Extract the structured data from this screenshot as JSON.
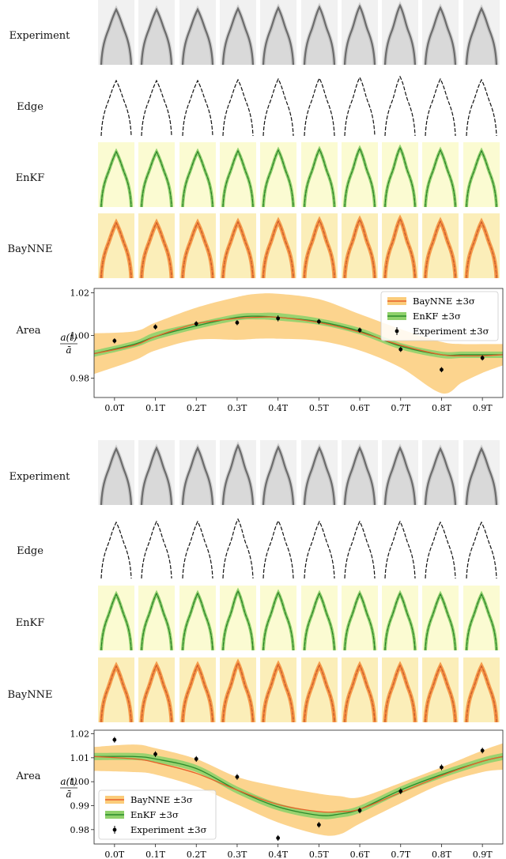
{
  "colors": {
    "experiment_bg": "#f1f1f1",
    "enkf_bg": "#fbfbd2",
    "baynne_bg": "#fbeeb9",
    "enkf_line": "#2a8a2a",
    "enkf_band": "#8fd16b",
    "baynne_line": "#e8602a",
    "baynne_band": "#fbcc7a",
    "edge_line": "#111111"
  },
  "panels": [
    {
      "row_labels": [
        "Experiment",
        "Edge",
        "EnKF",
        "BayNNE"
      ],
      "area_label": "Area",
      "ylabel_num": "a(t)",
      "ylabel_den": "ā",
      "legend": [
        "BayNNE ±3σ",
        "EnKF ±3σ",
        "Experiment ±3σ"
      ],
      "legend_position": "top-right"
    },
    {
      "row_labels": [
        "Experiment",
        "Edge",
        "EnKF",
        "BayNNE"
      ],
      "area_label": "Area",
      "ylabel_num": "a(t)",
      "ylabel_den": "ā",
      "legend": [
        "BayNNE ±3σ",
        "EnKF ±3σ",
        "Experiment ±3σ"
      ],
      "legend_position": "bottom-left"
    }
  ],
  "chart_data": [
    {
      "type": "line",
      "xlabel": "",
      "ylabel": "a(t)/ā",
      "x_ticks": [
        "0.0T",
        "0.1T",
        "0.2T",
        "0.3T",
        "0.4T",
        "0.5T",
        "0.6T",
        "0.7T",
        "0.8T",
        "0.9T"
      ],
      "y_ticks": [
        0.98,
        1.0,
        1.02
      ],
      "xlim": [
        -0.05,
        0.95
      ],
      "ylim": [
        0.971,
        1.022
      ],
      "grid": false,
      "series": [
        {
          "name": "BayNNE ±3σ",
          "x": [
            -0.05,
            0.05,
            0.1,
            0.2,
            0.3,
            0.35,
            0.4,
            0.5,
            0.6,
            0.7,
            0.8,
            0.85,
            0.9,
            0.95
          ],
          "y": [
            0.9915,
            0.9955,
            0.9995,
            1.0055,
            1.008,
            1.0085,
            1.0085,
            1.006,
            1.0015,
            0.9955,
            0.991,
            0.9905,
            0.9905,
            0.991
          ],
          "upper": [
            1.001,
            1.002,
            1.006,
            1.013,
            1.018,
            1.0195,
            1.0195,
            1.017,
            1.01,
            1.003,
            0.997,
            0.996,
            0.996,
            0.996
          ],
          "lower": [
            0.982,
            0.9885,
            0.993,
            0.998,
            0.998,
            0.9985,
            0.9985,
            0.9975,
            0.993,
            0.985,
            0.973,
            0.978,
            0.9825,
            0.986
          ]
        },
        {
          "name": "EnKF ±3σ",
          "x": [
            -0.05,
            0.05,
            0.1,
            0.2,
            0.3,
            0.35,
            0.4,
            0.5,
            0.6,
            0.7,
            0.8,
            0.85,
            0.9,
            0.95
          ],
          "y": [
            0.9915,
            0.996,
            0.9995,
            1.0045,
            1.0085,
            1.009,
            1.0085,
            1.0065,
            1.002,
            0.995,
            0.991,
            0.991,
            0.991,
            0.991
          ],
          "upper": [
            0.993,
            0.9975,
            1.0015,
            1.006,
            1.01,
            1.0105,
            1.0105,
            1.008,
            1.0035,
            0.9965,
            0.9925,
            0.9925,
            0.9925,
            0.9925
          ],
          "lower": [
            0.99,
            0.9945,
            0.998,
            1.003,
            1.007,
            1.0075,
            1.007,
            1.005,
            1.0005,
            0.9935,
            0.9895,
            0.9895,
            0.9895,
            0.9895
          ]
        },
        {
          "name": "Experiment ±3σ",
          "x": [
            0.0,
            0.1,
            0.2,
            0.3,
            0.4,
            0.5,
            0.6,
            0.7,
            0.8,
            0.9
          ],
          "y": [
            0.9975,
            1.004,
            1.0055,
            1.006,
            1.008,
            1.0065,
            1.0025,
            0.9935,
            0.984,
            0.9895
          ],
          "err": [
            0.0012,
            0.0012,
            0.0012,
            0.0012,
            0.0014,
            0.0012,
            0.0012,
            0.0012,
            0.0012,
            0.0012
          ]
        }
      ]
    },
    {
      "type": "line",
      "xlabel": "",
      "ylabel": "a(t)/ā",
      "x_ticks": [
        "0.0T",
        "0.1T",
        "0.2T",
        "0.3T",
        "0.4T",
        "0.5T",
        "0.6T",
        "0.7T",
        "0.8T",
        "0.9T"
      ],
      "y_ticks": [
        0.98,
        0.99,
        1.0,
        1.01,
        1.02
      ],
      "xlim": [
        -0.05,
        0.95
      ],
      "ylim": [
        0.974,
        1.0215
      ],
      "grid": false,
      "series": [
        {
          "name": "BayNNE ±3σ",
          "x": [
            -0.05,
            0.05,
            0.1,
            0.2,
            0.3,
            0.4,
            0.5,
            0.55,
            0.6,
            0.7,
            0.8,
            0.9,
            0.95
          ],
          "y": [
            1.0105,
            1.0095,
            1.008,
            1.0035,
            0.9965,
            0.9905,
            0.9875,
            0.9875,
            0.9885,
            0.9955,
            1.0025,
            1.0085,
            1.0105
          ],
          "upper": [
            1.0145,
            1.0155,
            1.014,
            1.0095,
            1.002,
            0.998,
            0.995,
            0.994,
            0.9935,
            0.9995,
            1.006,
            1.013,
            1.016
          ],
          "lower": [
            1.0045,
            1.004,
            1.003,
            0.998,
            0.9905,
            0.983,
            0.978,
            0.978,
            0.9825,
            0.991,
            0.999,
            1.004,
            1.005
          ]
        },
        {
          "name": "EnKF ±3σ",
          "x": [
            -0.05,
            0.05,
            0.1,
            0.2,
            0.3,
            0.4,
            0.5,
            0.55,
            0.6,
            0.7,
            0.8,
            0.9,
            0.95
          ],
          "y": [
            1.0105,
            1.0105,
            1.0095,
            1.0055,
            0.9965,
            0.9895,
            0.986,
            0.9865,
            0.9885,
            0.9965,
            1.003,
            1.0085,
            1.0105
          ],
          "upper": [
            1.012,
            1.012,
            1.011,
            1.007,
            0.998,
            0.991,
            0.9875,
            0.988,
            0.99,
            0.998,
            1.0045,
            1.01,
            1.012
          ],
          "lower": [
            1.009,
            1.009,
            1.008,
            1.004,
            0.995,
            0.988,
            0.9845,
            0.985,
            0.987,
            0.995,
            1.0015,
            1.007,
            1.009
          ]
        },
        {
          "name": "Experiment ±3σ",
          "x": [
            0.0,
            0.1,
            0.2,
            0.3,
            0.4,
            0.5,
            0.6,
            0.7,
            0.8,
            0.9
          ],
          "y": [
            1.0175,
            1.0115,
            1.0095,
            1.002,
            0.9765,
            0.982,
            0.988,
            0.996,
            1.006,
            1.013
          ],
          "err": [
            0.0012,
            0.0012,
            0.0012,
            0.0012,
            0.0012,
            0.0012,
            0.0012,
            0.0012,
            0.0012,
            0.0012
          ]
        }
      ]
    }
  ]
}
